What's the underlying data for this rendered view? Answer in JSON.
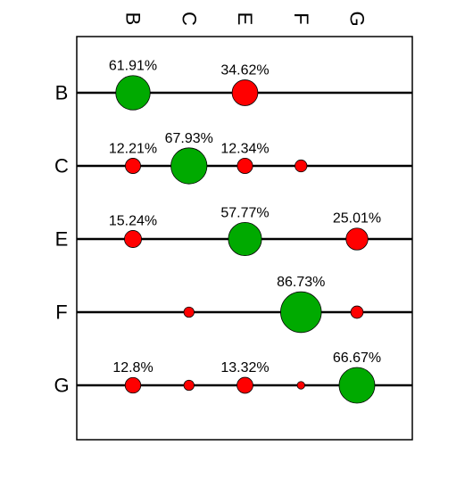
{
  "chart_data": {
    "type": "bubble-matrix",
    "title": "",
    "xlabel": "",
    "ylabel": "",
    "x_categories": [
      "B",
      "C",
      "E",
      "F",
      "G"
    ],
    "y_categories": [
      "B",
      "C",
      "E",
      "F",
      "G"
    ],
    "x_tick_position": "top",
    "x_tick_rotation_deg": 90,
    "grid": false,
    "legend": "none",
    "colors": {
      "large": "#00aa00",
      "small": "#ff0000",
      "line": "#000000",
      "frame": "#000000",
      "background": "#ffffff"
    },
    "rows": [
      {
        "row": "B",
        "cells": [
          {
            "col": "B",
            "value": 61.91,
            "label": "61.91%",
            "color": "large"
          },
          {
            "col": "E",
            "value": 34.62,
            "label": "34.62%",
            "color": "small"
          }
        ]
      },
      {
        "row": "C",
        "cells": [
          {
            "col": "B",
            "value": 12.21,
            "label": "12.21%",
            "color": "small"
          },
          {
            "col": "C",
            "value": 67.93,
            "label": "67.93%",
            "color": "large"
          },
          {
            "col": "E",
            "value": 12.34,
            "label": "12.34%",
            "color": "small"
          },
          {
            "col": "F",
            "value": 7.5,
            "label": "",
            "color": "small"
          }
        ]
      },
      {
        "row": "E",
        "cells": [
          {
            "col": "B",
            "value": 15.24,
            "label": "15.24%",
            "color": "small"
          },
          {
            "col": "E",
            "value": 57.77,
            "label": "57.77%",
            "color": "large"
          },
          {
            "col": "G",
            "value": 25.01,
            "label": "25.01%",
            "color": "small"
          }
        ]
      },
      {
        "row": "F",
        "cells": [
          {
            "col": "C",
            "value": 5.5,
            "label": "",
            "color": "small"
          },
          {
            "col": "F",
            "value": 86.73,
            "label": "86.73%",
            "color": "large"
          },
          {
            "col": "G",
            "value": 8.0,
            "label": "",
            "color": "small"
          }
        ]
      },
      {
        "row": "G",
        "cells": [
          {
            "col": "B",
            "value": 12.8,
            "label": "12.8%",
            "color": "small"
          },
          {
            "col": "C",
            "value": 5.5,
            "label": "",
            "color": "small"
          },
          {
            "col": "E",
            "value": 13.32,
            "label": "13.32%",
            "color": "small"
          },
          {
            "col": "F",
            "value": 3.0,
            "label": "",
            "color": "small"
          },
          {
            "col": "G",
            "value": 66.67,
            "label": "66.67%",
            "color": "large"
          }
        ]
      }
    ]
  }
}
